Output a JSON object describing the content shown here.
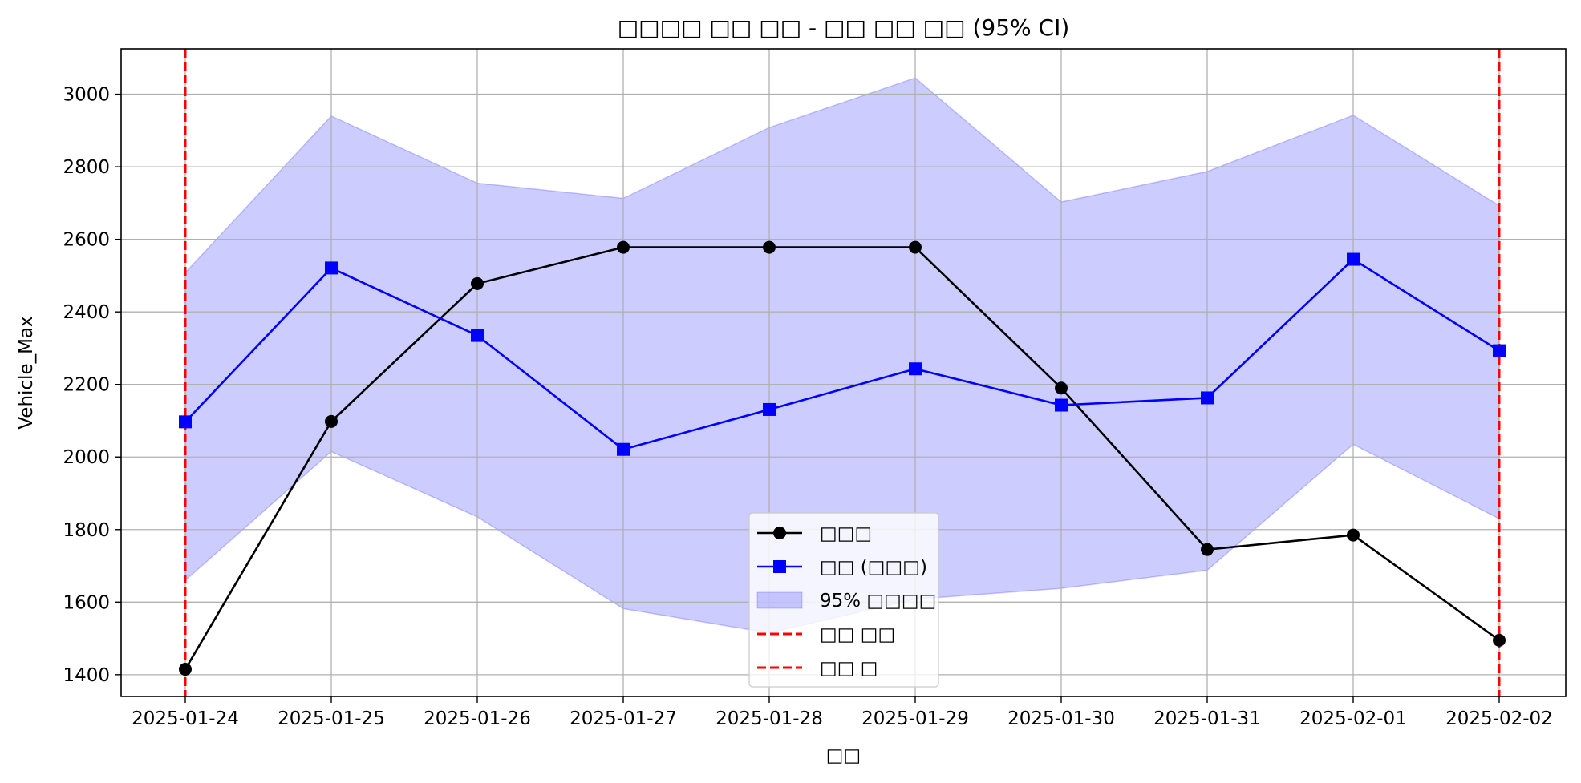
{
  "chart_data": {
    "type": "line",
    "title": "□□□□ □□ □□ - □□ □□ □□ (95% CI)",
    "xlabel": "□□",
    "ylabel": "Vehicle_Max",
    "categories": [
      "2025-01-24",
      "2025-01-25",
      "2025-01-26",
      "2025-01-27",
      "2025-01-28",
      "2025-01-29",
      "2025-01-30",
      "2025-01-31",
      "2025-02-01",
      "2025-02-02"
    ],
    "yticks": [
      1400,
      1600,
      1800,
      2000,
      2200,
      2400,
      2600,
      2800,
      3000
    ],
    "ylim": [
      1340,
      3125
    ],
    "grid": true,
    "legend_position": "bottom-center",
    "series": [
      {
        "name": "□□□",
        "color": "#000000",
        "marker": "circle",
        "values": [
          1415,
          2098,
          2478,
          2578,
          2578,
          2578,
          2190,
          1745,
          1785,
          1495
        ]
      },
      {
        "name": "□□ (□□□)",
        "color": "#0000ff",
        "marker": "square",
        "values": [
          2097,
          2521,
          2335,
          2021,
          2131,
          2243,
          2143,
          2163,
          2545,
          2293
        ]
      }
    ],
    "confidence_band": {
      "name": "95% □□□□",
      "color": "#0000ff",
      "lower": [
        1660,
        2015,
        1835,
        1582,
        1515,
        1608,
        1638,
        1688,
        2035,
        1830
      ],
      "upper": [
        2508,
        2940,
        2755,
        2713,
        2908,
        3045,
        2703,
        2787,
        2942,
        2693
      ]
    },
    "vlines": [
      {
        "name": "□□ □□",
        "x": "2025-01-24",
        "color": "#ff0000"
      },
      {
        "name": "□□ □",
        "x": "2025-02-02",
        "color": "#ff0000"
      }
    ]
  }
}
